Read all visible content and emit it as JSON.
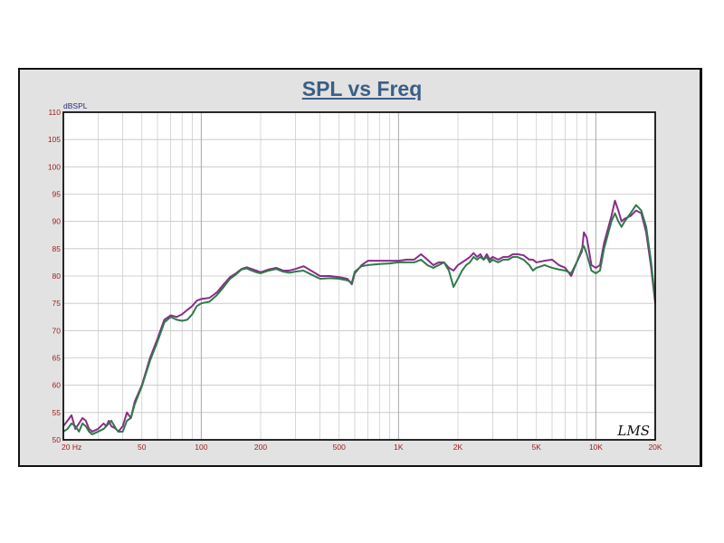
{
  "chart_data": {
    "type": "line",
    "title": "SPL vs Freq",
    "ylabel": "dBSPL",
    "xlabel": "",
    "x_scale": "log",
    "xlim": [
      20,
      20000
    ],
    "ylim": [
      50,
      110
    ],
    "grid": true,
    "y_ticks": [
      "50",
      "55",
      "60",
      "65",
      "70",
      "75",
      "80",
      "85",
      "90",
      "95",
      "100",
      "105",
      "110"
    ],
    "x_ticks": [
      {
        "value": 20,
        "label": "20  Hz"
      },
      {
        "value": 50,
        "label": "50"
      },
      {
        "value": 100,
        "label": "100"
      },
      {
        "value": 200,
        "label": "200"
      },
      {
        "value": 500,
        "label": "500"
      },
      {
        "value": 1000,
        "label": "1K"
      },
      {
        "value": 2000,
        "label": "2K"
      },
      {
        "value": 5000,
        "label": "5K"
      },
      {
        "value": 10000,
        "label": "10K"
      },
      {
        "value": 20000,
        "label": "20K"
      }
    ],
    "series": [
      {
        "color": "#8a2d8a",
        "points": [
          [
            20,
            52.5
          ],
          [
            21,
            53.5
          ],
          [
            22,
            54.5
          ],
          [
            23,
            52
          ],
          [
            24,
            53
          ],
          [
            25,
            54
          ],
          [
            26,
            53.5
          ],
          [
            27,
            52
          ],
          [
            28,
            51.5
          ],
          [
            30,
            52
          ],
          [
            32,
            53
          ],
          [
            33,
            52.5
          ],
          [
            34,
            53.5
          ],
          [
            35,
            52.5
          ],
          [
            37,
            52
          ],
          [
            38,
            51.5
          ],
          [
            40,
            52.5
          ],
          [
            42,
            55
          ],
          [
            44,
            54
          ],
          [
            46,
            57
          ],
          [
            50,
            60
          ],
          [
            55,
            65
          ],
          [
            60,
            68.5
          ],
          [
            65,
            72
          ],
          [
            70,
            72.8
          ],
          [
            75,
            72.5
          ],
          [
            80,
            73
          ],
          [
            85,
            73.8
          ],
          [
            90,
            74.5
          ],
          [
            95,
            75.5
          ],
          [
            100,
            75.8
          ],
          [
            110,
            76
          ],
          [
            120,
            77
          ],
          [
            130,
            78.5
          ],
          [
            140,
            79.8
          ],
          [
            150,
            80.5
          ],
          [
            160,
            81.3
          ],
          [
            170,
            81.6
          ],
          [
            180,
            81.3
          ],
          [
            190,
            81
          ],
          [
            200,
            80.7
          ],
          [
            220,
            81.2
          ],
          [
            240,
            81.5
          ],
          [
            260,
            81
          ],
          [
            280,
            81
          ],
          [
            300,
            81.3
          ],
          [
            330,
            81.8
          ],
          [
            360,
            81
          ],
          [
            400,
            80
          ],
          [
            450,
            80
          ],
          [
            500,
            79.8
          ],
          [
            550,
            79.5
          ],
          [
            580,
            78.5
          ],
          [
            600,
            80.5
          ],
          [
            650,
            82
          ],
          [
            700,
            82.8
          ],
          [
            800,
            82.8
          ],
          [
            900,
            82.8
          ],
          [
            1000,
            82.8
          ],
          [
            1100,
            83
          ],
          [
            1200,
            83
          ],
          [
            1300,
            84
          ],
          [
            1400,
            83
          ],
          [
            1500,
            82
          ],
          [
            1600,
            82.5
          ],
          [
            1700,
            82.5
          ],
          [
            1800,
            81.5
          ],
          [
            1900,
            81
          ],
          [
            2000,
            82
          ],
          [
            2100,
            82.5
          ],
          [
            2200,
            83
          ],
          [
            2300,
            83.5
          ],
          [
            2400,
            84.2
          ],
          [
            2500,
            83.5
          ],
          [
            2600,
            84
          ],
          [
            2700,
            83
          ],
          [
            2800,
            84
          ],
          [
            2900,
            83
          ],
          [
            3000,
            83.5
          ],
          [
            3200,
            83
          ],
          [
            3400,
            83.5
          ],
          [
            3600,
            83.5
          ],
          [
            3800,
            84
          ],
          [
            4000,
            84
          ],
          [
            4300,
            83.8
          ],
          [
            4600,
            83
          ],
          [
            4800,
            83
          ],
          [
            5000,
            82.5
          ],
          [
            5500,
            82.8
          ],
          [
            6000,
            83
          ],
          [
            6500,
            82
          ],
          [
            7000,
            81.5
          ],
          [
            7500,
            80
          ],
          [
            8000,
            82.5
          ],
          [
            8500,
            84.5
          ],
          [
            8700,
            88
          ],
          [
            9000,
            87
          ],
          [
            9500,
            82
          ],
          [
            10000,
            81.5
          ],
          [
            10500,
            82
          ],
          [
            11000,
            86
          ],
          [
            12000,
            91
          ],
          [
            12500,
            93.8
          ],
          [
            13000,
            92
          ],
          [
            13500,
            90
          ],
          [
            14000,
            90.5
          ],
          [
            15000,
            91
          ],
          [
            16000,
            92
          ],
          [
            17000,
            91.5
          ],
          [
            18000,
            88
          ],
          [
            19000,
            82
          ],
          [
            20000,
            75
          ]
        ]
      },
      {
        "color": "#2f7a4a",
        "points": [
          [
            20,
            51.5
          ],
          [
            21,
            52
          ],
          [
            22,
            53
          ],
          [
            23,
            52.5
          ],
          [
            24,
            51.5
          ],
          [
            25,
            53
          ],
          [
            26,
            52.5
          ],
          [
            27,
            51.5
          ],
          [
            28,
            51
          ],
          [
            30,
            51.5
          ],
          [
            32,
            52
          ],
          [
            33,
            52.5
          ],
          [
            34,
            53
          ],
          [
            35,
            53.5
          ],
          [
            37,
            52
          ],
          [
            38,
            51.5
          ],
          [
            40,
            51.5
          ],
          [
            42,
            53.5
          ],
          [
            44,
            54
          ],
          [
            46,
            56.5
          ],
          [
            50,
            59.8
          ],
          [
            55,
            64.5
          ],
          [
            60,
            68
          ],
          [
            65,
            71.5
          ],
          [
            70,
            72.5
          ],
          [
            75,
            72
          ],
          [
            80,
            71.8
          ],
          [
            85,
            72
          ],
          [
            90,
            73
          ],
          [
            95,
            74.5
          ],
          [
            100,
            75
          ],
          [
            110,
            75.3
          ],
          [
            120,
            76.5
          ],
          [
            130,
            78
          ],
          [
            140,
            79.5
          ],
          [
            150,
            80.3
          ],
          [
            160,
            81.2
          ],
          [
            170,
            81.4
          ],
          [
            180,
            81
          ],
          [
            190,
            80.7
          ],
          [
            200,
            80.5
          ],
          [
            220,
            81
          ],
          [
            240,
            81.3
          ],
          [
            260,
            80.8
          ],
          [
            280,
            80.6
          ],
          [
            300,
            80.8
          ],
          [
            330,
            81
          ],
          [
            360,
            80.3
          ],
          [
            400,
            79.5
          ],
          [
            450,
            79.6
          ],
          [
            500,
            79.5
          ],
          [
            550,
            79.2
          ],
          [
            580,
            78.8
          ],
          [
            600,
            80.8
          ],
          [
            650,
            81.8
          ],
          [
            700,
            82
          ],
          [
            800,
            82.2
          ],
          [
            900,
            82.3
          ],
          [
            1000,
            82.5
          ],
          [
            1100,
            82.5
          ],
          [
            1200,
            82.5
          ],
          [
            1300,
            83
          ],
          [
            1400,
            82
          ],
          [
            1500,
            81.5
          ],
          [
            1600,
            82
          ],
          [
            1700,
            82.5
          ],
          [
            1800,
            81
          ],
          [
            1900,
            78
          ],
          [
            2000,
            79.5
          ],
          [
            2100,
            81
          ],
          [
            2200,
            82
          ],
          [
            2300,
            82.5
          ],
          [
            2400,
            83.5
          ],
          [
            2500,
            83
          ],
          [
            2600,
            83.5
          ],
          [
            2700,
            83
          ],
          [
            2800,
            83.5
          ],
          [
            2900,
            82.5
          ],
          [
            3000,
            83
          ],
          [
            3200,
            82.5
          ],
          [
            3400,
            83
          ],
          [
            3600,
            83
          ],
          [
            3800,
            83.5
          ],
          [
            4000,
            83.5
          ],
          [
            4300,
            83
          ],
          [
            4600,
            82
          ],
          [
            4800,
            81
          ],
          [
            5000,
            81.5
          ],
          [
            5500,
            82
          ],
          [
            6000,
            81.5
          ],
          [
            6500,
            81.2
          ],
          [
            7000,
            81
          ],
          [
            7500,
            80.5
          ],
          [
            8000,
            82.5
          ],
          [
            8500,
            85
          ],
          [
            8700,
            85.5
          ],
          [
            9000,
            84
          ],
          [
            9500,
            81
          ],
          [
            10000,
            80.5
          ],
          [
            10500,
            81
          ],
          [
            11000,
            85
          ],
          [
            12000,
            90
          ],
          [
            12500,
            91.5
          ],
          [
            13000,
            90
          ],
          [
            13500,
            89
          ],
          [
            14000,
            90
          ],
          [
            15000,
            91.5
          ],
          [
            16000,
            93
          ],
          [
            17000,
            92
          ],
          [
            18000,
            89
          ],
          [
            19000,
            83
          ],
          [
            20000,
            75.5
          ]
        ]
      }
    ]
  },
  "branding": {
    "logo_text": "LMS"
  }
}
